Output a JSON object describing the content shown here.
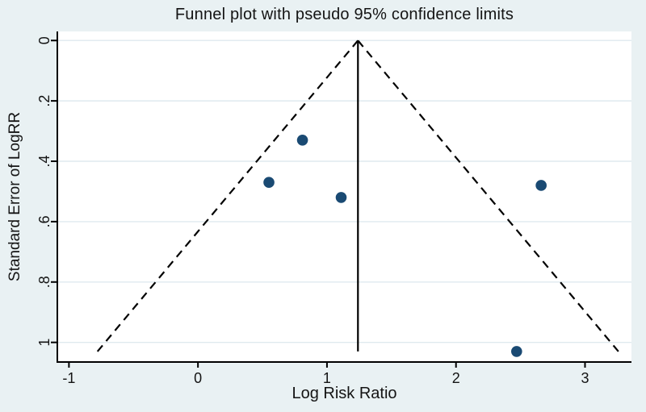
{
  "chart_data": {
    "type": "scatter",
    "subtype": "funnel-plot",
    "title": "Funnel plot with pseudo 95% confidence limits",
    "xlabel": "Log Risk Ratio",
    "ylabel": "Standard Error of LogRR",
    "x_ticks": {
      "values": [
        -1,
        0,
        1,
        2,
        3
      ],
      "labels": [
        "-1",
        "0",
        "1",
        "2",
        "3"
      ]
    },
    "y_ticks": {
      "values": [
        0,
        0.2,
        0.4,
        0.6,
        0.8,
        1
      ],
      "labels": [
        "0",
        ".2",
        ".4",
        ".6",
        ".8",
        "1"
      ]
    },
    "xlim": [
      -1.09,
      3.36
    ],
    "ylim": [
      -0.03,
      1.065
    ],
    "y_axis_inverted": true,
    "grid": "horizontal gridlines at y ticks",
    "legend": "none",
    "center_line_x": 1.24,
    "pseudo_ci_z": 1.96,
    "funnel_max_se": 1.03,
    "points": [
      {
        "log_rr": 0.81,
        "se": 0.33
      },
      {
        "log_rr": 0.55,
        "se": 0.47
      },
      {
        "log_rr": 1.11,
        "se": 0.52
      },
      {
        "log_rr": 2.66,
        "se": 0.48
      },
      {
        "log_rr": 2.47,
        "se": 1.03
      }
    ],
    "colors": {
      "background": "#e9f1f3",
      "plot_background": "#ffffff",
      "gridline": "#dfeaef",
      "ink": "#000000",
      "text": "#141414",
      "marker": "#1a4a73"
    }
  }
}
